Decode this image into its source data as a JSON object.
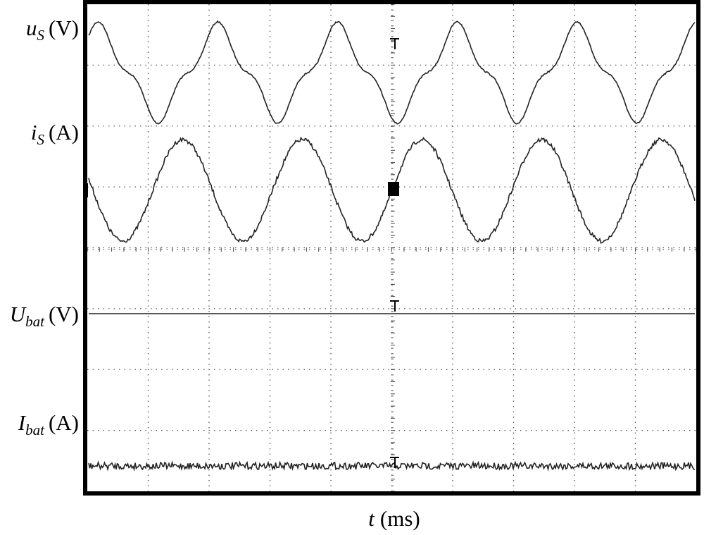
{
  "labels": [
    {
      "main": "u",
      "sub": "S",
      "unit": "(V)"
    },
    {
      "main": "i",
      "sub": "S",
      "unit": "(A)"
    },
    {
      "main": "U",
      "sub": "bat",
      "unit": "(V)"
    },
    {
      "main": "I",
      "sub": "bat",
      "unit": "(A)"
    }
  ],
  "x_axis": {
    "main": "t",
    "unit": "(ms)"
  }
}
